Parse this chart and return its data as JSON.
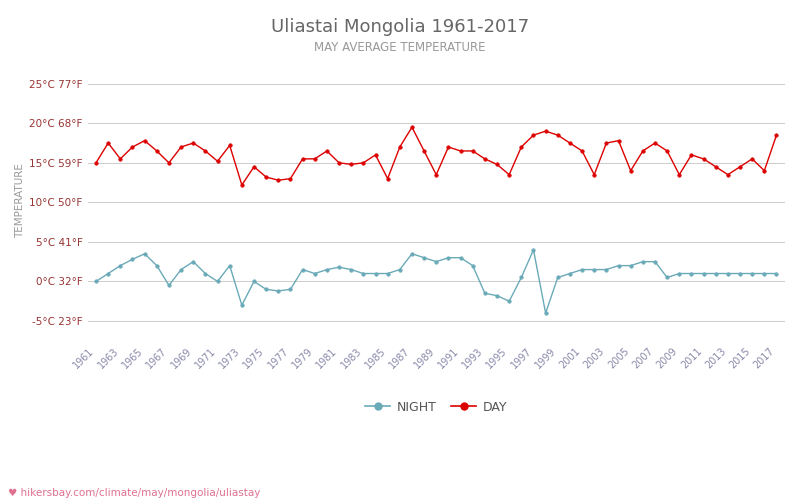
{
  "title": "Uliastai Mongolia 1961-2017",
  "subtitle": "MAY AVERAGE TEMPERATURE",
  "ylabel": "TEMPERATURE",
  "footer": "hikersbay.com/climate/may/mongolia/uliastay",
  "years": [
    1961,
    1962,
    1963,
    1964,
    1965,
    1966,
    1967,
    1968,
    1969,
    1970,
    1971,
    1972,
    1973,
    1974,
    1975,
    1976,
    1977,
    1978,
    1979,
    1980,
    1981,
    1982,
    1983,
    1984,
    1985,
    1986,
    1987,
    1988,
    1989,
    1990,
    1991,
    1992,
    1993,
    1994,
    1995,
    1996,
    1997,
    1998,
    1999,
    2000,
    2001,
    2002,
    2003,
    2004,
    2005,
    2006,
    2007,
    2008,
    2009,
    2010,
    2011,
    2012,
    2013,
    2014,
    2015,
    2016,
    2017
  ],
  "day_temps": [
    15.0,
    17.5,
    15.5,
    17.0,
    17.8,
    16.5,
    15.0,
    17.0,
    17.5,
    16.5,
    15.2,
    17.2,
    12.2,
    14.5,
    13.2,
    12.8,
    13.0,
    15.5,
    15.5,
    16.5,
    15.0,
    14.8,
    15.0,
    16.0,
    13.0,
    17.0,
    19.5,
    16.5,
    13.5,
    17.0,
    16.5,
    16.5,
    15.5,
    14.8,
    13.5,
    17.0,
    18.5,
    19.0,
    18.5,
    17.5,
    16.5,
    13.5,
    17.5,
    17.8,
    14.0,
    16.5,
    17.5,
    16.5,
    13.5,
    16.0,
    15.5,
    14.5,
    13.5,
    14.5,
    15.5,
    14.0,
    18.5
  ],
  "night_temps": [
    0.0,
    1.0,
    2.0,
    2.8,
    3.5,
    2.0,
    -0.5,
    1.5,
    2.5,
    1.0,
    0.0,
    2.0,
    -3.0,
    0.0,
    -1.0,
    -1.2,
    -1.0,
    1.5,
    1.0,
    1.5,
    1.8,
    1.5,
    1.0,
    1.0,
    1.0,
    1.5,
    3.5,
    3.0,
    2.5,
    3.0,
    3.0,
    2.0,
    -1.5,
    -1.8,
    -2.5,
    0.5,
    4.0,
    -4.0,
    0.5,
    1.0,
    1.5,
    1.5,
    1.5,
    2.0,
    2.0,
    2.5,
    2.5,
    0.5,
    1.0,
    1.0,
    1.0,
    1.0,
    1.0,
    1.0,
    1.0,
    1.0,
    1.0
  ],
  "day_color": "#dd0000",
  "night_color": "#6aaab8",
  "bg_color": "#ffffff",
  "grid_color": "#cccccc",
  "title_color": "#666666",
  "subtitle_color": "#999999",
  "tick_label_color": "#993333",
  "xtick_color": "#8888aa",
  "ylabel_color": "#999999",
  "legend_color": "#555555",
  "yticks_c": [
    -5,
    0,
    5,
    10,
    15,
    20,
    25
  ],
  "yticks_f": [
    23,
    32,
    41,
    50,
    59,
    68,
    77
  ],
  "ylim": [
    -7.5,
    28
  ],
  "xlim": [
    1960.3,
    2017.7
  ],
  "footer_color": "#e07090",
  "footer_icon_color": "#e07090"
}
